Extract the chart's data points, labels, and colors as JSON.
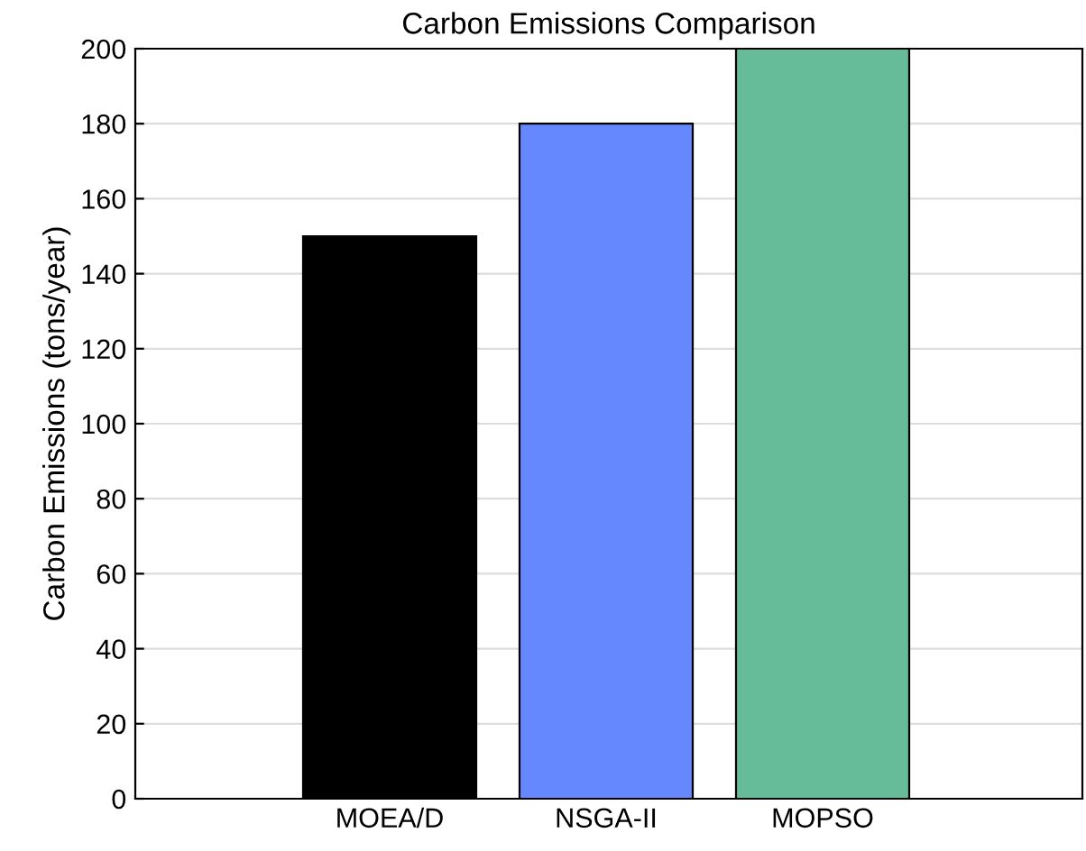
{
  "chart_data": {
    "type": "bar",
    "title": "Carbon Emissions Comparison",
    "ylabel": "Carbon Emissions (tons/year)",
    "categories": [
      "MOEA/D",
      "NSGA-II",
      "MOPSO"
    ],
    "values": [
      150,
      180,
      200
    ],
    "colors": [
      "#000000",
      "#6688ff",
      "#66bb99"
    ],
    "ylim": [
      0,
      200
    ],
    "yticks": [
      0,
      20,
      40,
      60,
      80,
      100,
      120,
      140,
      160,
      180,
      200
    ],
    "grid": "y"
  }
}
